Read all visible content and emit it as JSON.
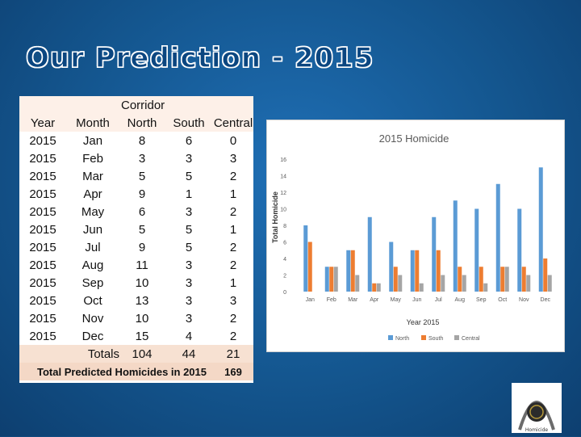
{
  "slide": {
    "title": "Our Prediction - 2015"
  },
  "table": {
    "group_header": "Corridor",
    "columns": [
      "Year",
      "Month",
      "North",
      "South",
      "Central"
    ],
    "rows": [
      [
        "2015",
        "Jan",
        "8",
        "6",
        "0"
      ],
      [
        "2015",
        "Feb",
        "3",
        "3",
        "3"
      ],
      [
        "2015",
        "Mar",
        "5",
        "5",
        "2"
      ],
      [
        "2015",
        "Apr",
        "9",
        "1",
        "1"
      ],
      [
        "2015",
        "May",
        "6",
        "3",
        "2"
      ],
      [
        "2015",
        "Jun",
        "5",
        "5",
        "1"
      ],
      [
        "2015",
        "Jul",
        "9",
        "5",
        "2"
      ],
      [
        "2015",
        "Aug",
        "11",
        "3",
        "2"
      ],
      [
        "2015",
        "Sep",
        "10",
        "3",
        "1"
      ],
      [
        "2015",
        "Oct",
        "13",
        "3",
        "3"
      ],
      [
        "2015",
        "Nov",
        "10",
        "3",
        "2"
      ],
      [
        "2015",
        "Dec",
        "15",
        "4",
        "2"
      ]
    ],
    "totals": {
      "label": "Totals",
      "north": "104",
      "south": "44",
      "central": "21"
    },
    "grand_total": {
      "label": "Total Predicted Homicides in 2015",
      "value": "169"
    }
  },
  "chart_data": {
    "type": "bar",
    "title": "2015 Homicide",
    "xlabel": "Year 2015",
    "ylabel": "Total Homicide",
    "categories": [
      "Jan",
      "Feb",
      "Mar",
      "Apr",
      "May",
      "Jun",
      "Jul",
      "Aug",
      "Sep",
      "Oct",
      "Nov",
      "Dec"
    ],
    "series": [
      {
        "name": "North",
        "values": [
          8,
          3,
          5,
          9,
          6,
          5,
          9,
          11,
          10,
          13,
          10,
          15
        ],
        "color": "#5b9bd5"
      },
      {
        "name": "South",
        "values": [
          6,
          3,
          5,
          1,
          3,
          5,
          5,
          3,
          3,
          3,
          3,
          4
        ],
        "color": "#ed7d31"
      },
      {
        "name": "Central",
        "values": [
          0,
          3,
          2,
          1,
          2,
          1,
          2,
          2,
          1,
          3,
          2,
          2
        ],
        "color": "#a5a5a5"
      }
    ],
    "ylim": [
      0,
      16
    ],
    "yticks": [
      0,
      2,
      4,
      6,
      8,
      10,
      12,
      14,
      16
    ],
    "grid": false,
    "legend": "bottom"
  },
  "logo": {
    "caption": "Homicide"
  }
}
